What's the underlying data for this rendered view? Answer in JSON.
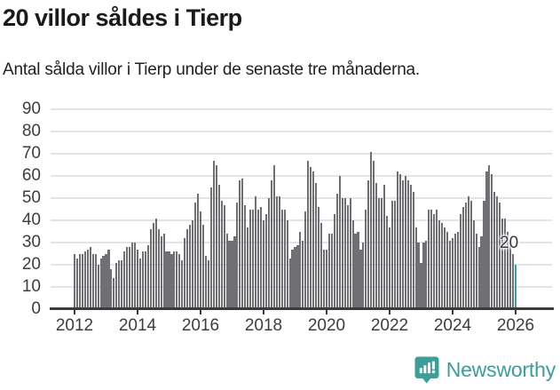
{
  "header": {
    "title": "20 villor såldes i Tierp",
    "subtitle": "Antal sålda villor i Tierp under de senaste tre månaderna."
  },
  "chart_data": {
    "type": "bar",
    "title": "20 villor såldes i Tierp",
    "subtitle": "Antal sålda villor i Tierp under de senaste tre månaderna.",
    "frequency": "monthly",
    "x_start": "2012-01",
    "x_end": "2026-01",
    "values": [
      25,
      23,
      25,
      25,
      26,
      27,
      28,
      25,
      25,
      20,
      23,
      24,
      25,
      27,
      18,
      14,
      21,
      22,
      22,
      26,
      28,
      28,
      30,
      30,
      27,
      23,
      26,
      26,
      29,
      36,
      39,
      41,
      36,
      33,
      34,
      26,
      26,
      25,
      26,
      26,
      25,
      22,
      32,
      36,
      38,
      40,
      48,
      52,
      44,
      38,
      24,
      22,
      55,
      67,
      65,
      56,
      49,
      47,
      34,
      31,
      31,
      33,
      48,
      58,
      59,
      47,
      37,
      45,
      45,
      51,
      45,
      46,
      40,
      43,
      50,
      58,
      65,
      51,
      51,
      45,
      45,
      40,
      23,
      27,
      28,
      29,
      35,
      31,
      44,
      67,
      64,
      62,
      57,
      46,
      39,
      27,
      27,
      34,
      34,
      43,
      52,
      60,
      50,
      50,
      47,
      50,
      40,
      34,
      35,
      27,
      30,
      45,
      58,
      71,
      67,
      57,
      50,
      50,
      56,
      42,
      37,
      49,
      49,
      62,
      61,
      58,
      60,
      58,
      56,
      53,
      37,
      30,
      21,
      30,
      31,
      45,
      45,
      43,
      45,
      40,
      39,
      37,
      35,
      31,
      32,
      34,
      35,
      43,
      46,
      48,
      51,
      49,
      40,
      34,
      28,
      33,
      49,
      62,
      65,
      61,
      53,
      51,
      48,
      41,
      41,
      35,
      30,
      25,
      20
    ],
    "highlight_last": {
      "value": 20,
      "label": "20",
      "color": "#35a0a0"
    },
    "bar_color": "#6f6f74",
    "ylim": [
      0,
      90
    ],
    "yticks": [
      0,
      10,
      20,
      30,
      40,
      50,
      60,
      70,
      80,
      90
    ],
    "xticks": [
      "2012",
      "2014",
      "2016",
      "2018",
      "2020",
      "2022",
      "2024",
      "2026"
    ],
    "xtick_interval_months": 24,
    "grid": "horizontal",
    "legend": "none"
  },
  "footer": {
    "brand": "Newsworthy",
    "brand_color": "#3d9e97",
    "logo_icon": "newsworthy-speech-bubble-bar-chart-icon"
  }
}
